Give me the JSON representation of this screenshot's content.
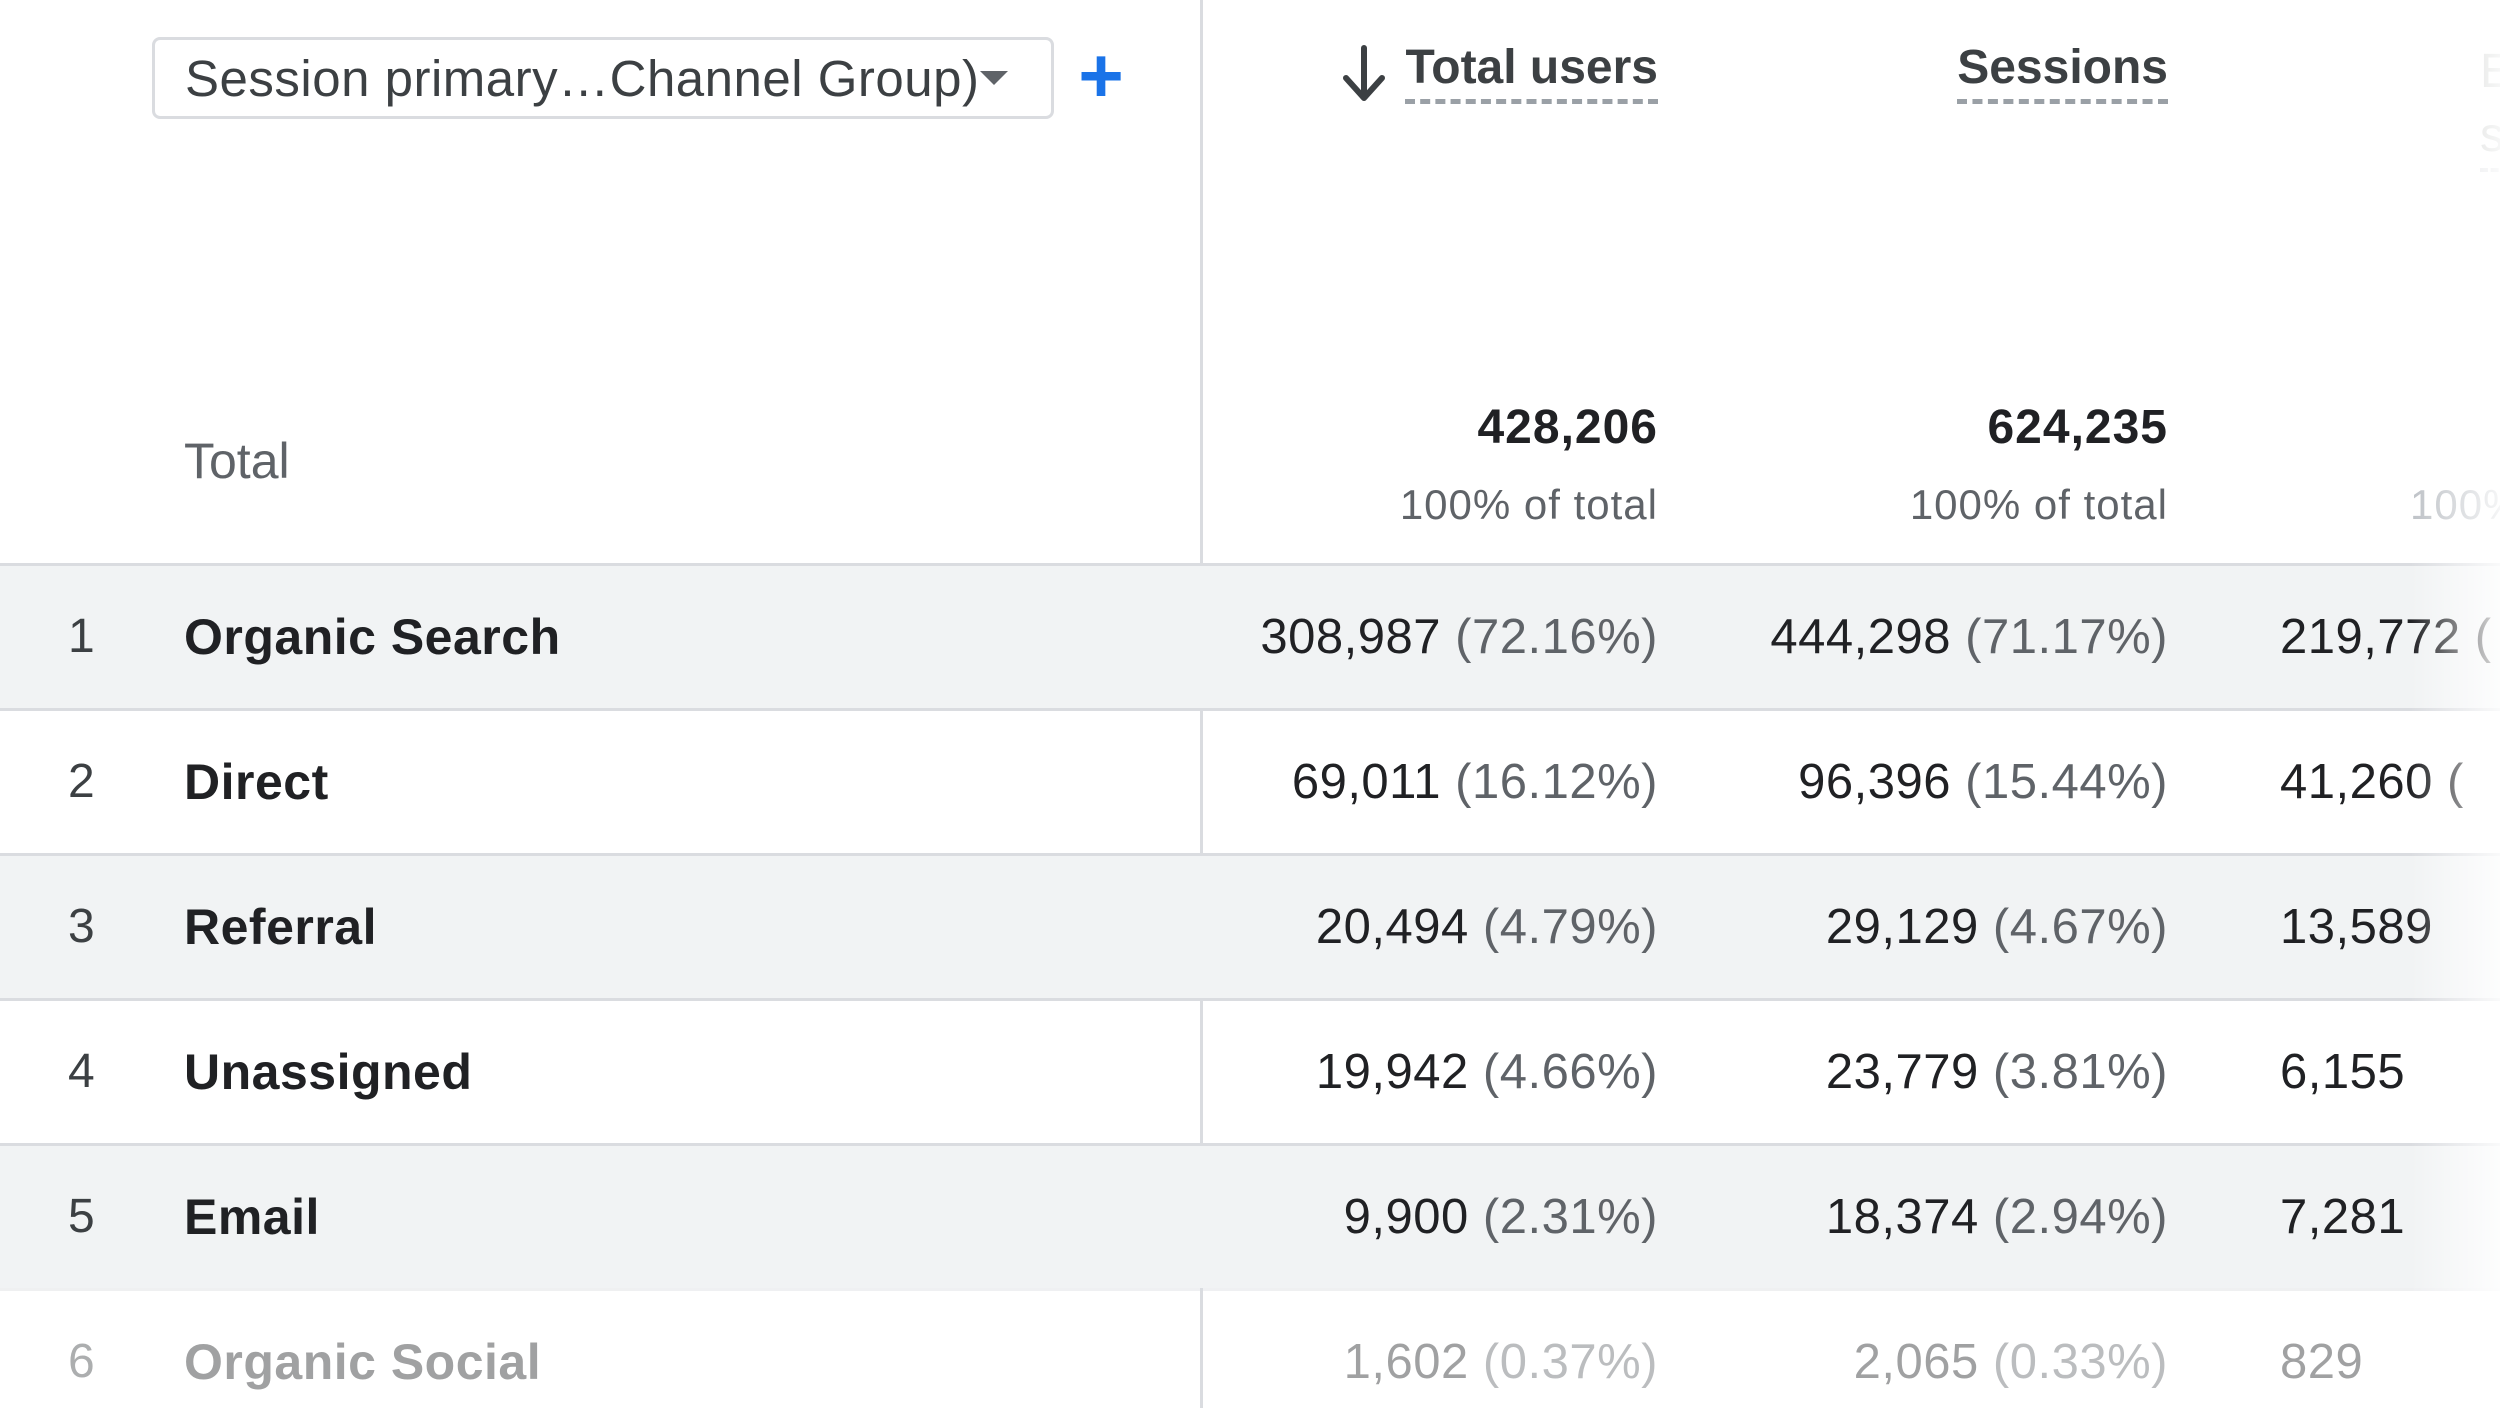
{
  "dimension_selector": {
    "label": "Session primary…Channel Group)"
  },
  "add_dimension": {
    "symbol": "+"
  },
  "columns": [
    {
      "label": "Total users",
      "sorted": "descending"
    },
    {
      "label": "Sessions"
    },
    {
      "label": "E s"
    }
  ],
  "totals": {
    "label": "Total",
    "total_users": {
      "value": "428,206",
      "share": "100% of total"
    },
    "sessions": {
      "value": "624,235",
      "share": "100% of total"
    },
    "third": {
      "share": "100%"
    }
  },
  "rows": [
    {
      "index": "1",
      "channel": "Organic Search",
      "users": "308,987",
      "users_pct": "(72.16%)",
      "sessions": "444,298",
      "sessions_pct": "(71.17%)",
      "third": "219,772 ("
    },
    {
      "index": "2",
      "channel": "Direct",
      "users": "69,011",
      "users_pct": "(16.12%)",
      "sessions": "96,396",
      "sessions_pct": "(15.44%)",
      "third": "41,260 ("
    },
    {
      "index": "3",
      "channel": "Referral",
      "users": "20,494",
      "users_pct": "(4.79%)",
      "sessions": "29,129",
      "sessions_pct": "(4.67%)",
      "third": "13,589"
    },
    {
      "index": "4",
      "channel": "Unassigned",
      "users": "19,942",
      "users_pct": "(4.66%)",
      "sessions": "23,779",
      "sessions_pct": "(3.81%)",
      "third": "6,155"
    },
    {
      "index": "5",
      "channel": "Email",
      "users": "9,900",
      "users_pct": "(2.31%)",
      "sessions": "18,374",
      "sessions_pct": "(2.94%)",
      "third": "7,281"
    },
    {
      "index": "6",
      "channel": "Organic Social",
      "users": "1,602",
      "users_pct": "(0.37%)",
      "sessions": "2,065",
      "sessions_pct": "(0.33%)",
      "third": "829"
    }
  ],
  "colors": {
    "accent": "#1a73e8",
    "row_shade": "#f1f3f4",
    "divider": "#dadce0"
  },
  "icons": {
    "sort": "arrow-down-icon",
    "dropdown": "caret-down-icon",
    "add": "plus-icon"
  }
}
